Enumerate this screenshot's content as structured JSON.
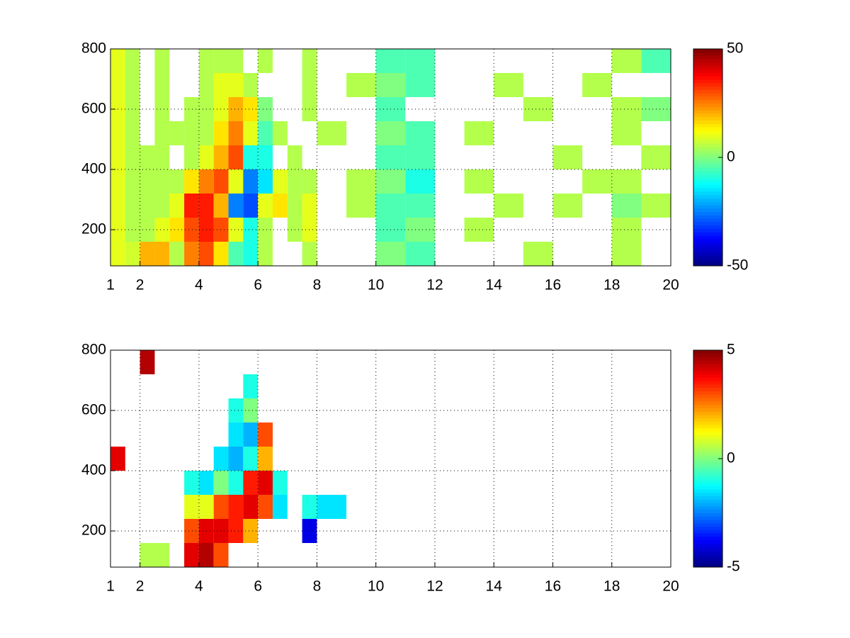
{
  "chart_data": [
    {
      "type": "heatmap",
      "colormap": "jet",
      "grid": true,
      "xlim": [
        1,
        20
      ],
      "ylim": [
        80,
        800
      ],
      "xticks": [
        1,
        2,
        4,
        6,
        8,
        10,
        12,
        14,
        16,
        18,
        20
      ],
      "yticks": [
        200,
        400,
        600,
        800
      ],
      "clim": [
        -50,
        50
      ],
      "cticks": [
        -50,
        0,
        50
      ],
      "x_bins": [
        1,
        1.5,
        2,
        2.5,
        3,
        3.5,
        4,
        4.5,
        5,
        5.5,
        6,
        6.5,
        7,
        7.5,
        8,
        9,
        10,
        11,
        12,
        13,
        14,
        15,
        16,
        17,
        18,
        19,
        20
      ],
      "y_bins": [
        80,
        160,
        240,
        320,
        400,
        480,
        560,
        640,
        720,
        800
      ],
      "values": [
        [
          10,
          8,
          20,
          20,
          5,
          25,
          30,
          15,
          -5,
          -10,
          5,
          null,
          null,
          5,
          null,
          null,
          0,
          -5,
          null,
          null,
          null,
          5,
          null,
          null,
          5,
          null
        ],
        [
          10,
          5,
          5,
          10,
          15,
          30,
          35,
          30,
          10,
          -10,
          5,
          null,
          5,
          10,
          null,
          null,
          -5,
          0,
          null,
          5,
          null,
          null,
          null,
          null,
          5,
          null
        ],
        [
          10,
          5,
          5,
          5,
          10,
          35,
          35,
          20,
          -25,
          -30,
          10,
          15,
          5,
          10,
          null,
          5,
          -5,
          -5,
          null,
          null,
          5,
          null,
          5,
          null,
          0,
          5
        ],
        [
          10,
          5,
          5,
          5,
          5,
          15,
          25,
          30,
          10,
          -25,
          -15,
          10,
          5,
          5,
          null,
          5,
          0,
          -10,
          null,
          5,
          null,
          null,
          null,
          5,
          5,
          null
        ],
        [
          10,
          5,
          5,
          5,
          null,
          5,
          10,
          20,
          30,
          -10,
          -10,
          null,
          5,
          null,
          null,
          null,
          -5,
          -5,
          null,
          null,
          null,
          null,
          5,
          null,
          null,
          5
        ],
        [
          10,
          5,
          null,
          5,
          5,
          5,
          5,
          15,
          25,
          10,
          -5,
          5,
          null,
          null,
          5,
          null,
          0,
          -5,
          null,
          5,
          null,
          null,
          null,
          null,
          5,
          null
        ],
        [
          10,
          5,
          null,
          5,
          null,
          5,
          5,
          10,
          20,
          15,
          0,
          null,
          null,
          5,
          null,
          null,
          -5,
          null,
          null,
          null,
          null,
          5,
          null,
          null,
          5,
          0
        ],
        [
          10,
          5,
          null,
          5,
          null,
          null,
          5,
          10,
          10,
          5,
          null,
          null,
          null,
          5,
          null,
          5,
          0,
          -5,
          null,
          null,
          5,
          null,
          null,
          5,
          null,
          null
        ],
        [
          10,
          5,
          null,
          5,
          null,
          null,
          5,
          5,
          5,
          null,
          5,
          null,
          null,
          5,
          null,
          null,
          -5,
          -5,
          null,
          null,
          null,
          null,
          null,
          null,
          5,
          -5
        ]
      ]
    },
    {
      "type": "heatmap",
      "colormap": "jet",
      "grid": true,
      "xlim": [
        1,
        20
      ],
      "ylim": [
        80,
        800
      ],
      "xticks": [
        1,
        2,
        4,
        6,
        8,
        10,
        12,
        14,
        16,
        18,
        20
      ],
      "yticks": [
        200,
        400,
        600,
        800
      ],
      "clim": [
        -5,
        5
      ],
      "cticks": [
        -5,
        0,
        5
      ],
      "x_bins": [
        1,
        1.5,
        2,
        2.5,
        3,
        3.5,
        4,
        4.5,
        5,
        5.5,
        6,
        6.5,
        7,
        7.5,
        8,
        9,
        10,
        11,
        12,
        13,
        14,
        15,
        16,
        17,
        18,
        19,
        20
      ],
      "y_bins": [
        80,
        160,
        240,
        320,
        400,
        480,
        560,
        640,
        720,
        800
      ],
      "values": [
        [
          null,
          null,
          0.5,
          0.5,
          null,
          4,
          4.5,
          3,
          null,
          null,
          null,
          null,
          null,
          null,
          null,
          null,
          null,
          null,
          null,
          null,
          null,
          null,
          null,
          null,
          null,
          null
        ],
        [
          null,
          null,
          null,
          null,
          null,
          3,
          4,
          4,
          3.5,
          2,
          null,
          null,
          null,
          -4,
          null,
          null,
          null,
          null,
          null,
          null,
          null,
          null,
          null,
          null,
          null,
          null
        ],
        [
          null,
          null,
          null,
          null,
          null,
          1,
          1,
          3,
          3.5,
          4,
          3,
          -1.5,
          null,
          -1,
          -1.5,
          null,
          null,
          null,
          null,
          null,
          null,
          null,
          null,
          null,
          null,
          null
        ],
        [
          null,
          null,
          null,
          null,
          null,
          -1,
          -1.5,
          0,
          -1,
          3.5,
          4,
          -1,
          null,
          null,
          null,
          null,
          null,
          null,
          null,
          null,
          null,
          null,
          null,
          null,
          null,
          null
        ],
        [
          4,
          null,
          null,
          null,
          null,
          null,
          null,
          -1.5,
          -2,
          -1,
          2,
          null,
          null,
          null,
          null,
          null,
          null,
          null,
          null,
          null,
          null,
          null,
          null,
          null,
          null,
          null
        ],
        [
          null,
          null,
          null,
          null,
          null,
          null,
          null,
          null,
          -1.5,
          -2,
          3,
          null,
          null,
          null,
          null,
          null,
          null,
          null,
          null,
          null,
          null,
          null,
          null,
          null,
          null,
          null
        ],
        [
          null,
          null,
          null,
          null,
          null,
          null,
          null,
          null,
          -1,
          0,
          null,
          null,
          null,
          null,
          null,
          null,
          null,
          null,
          null,
          null,
          null,
          null,
          null,
          null,
          null,
          null
        ],
        [
          null,
          null,
          null,
          null,
          null,
          null,
          null,
          null,
          null,
          -1,
          null,
          null,
          null,
          null,
          null,
          null,
          null,
          null,
          null,
          null,
          null,
          null,
          null,
          null,
          null,
          null
        ],
        [
          null,
          null,
          4.5,
          null,
          null,
          null,
          null,
          null,
          null,
          null,
          null,
          null,
          null,
          null,
          null,
          null,
          null,
          null,
          null,
          null,
          null,
          null,
          null,
          null,
          null,
          null
        ]
      ]
    }
  ]
}
